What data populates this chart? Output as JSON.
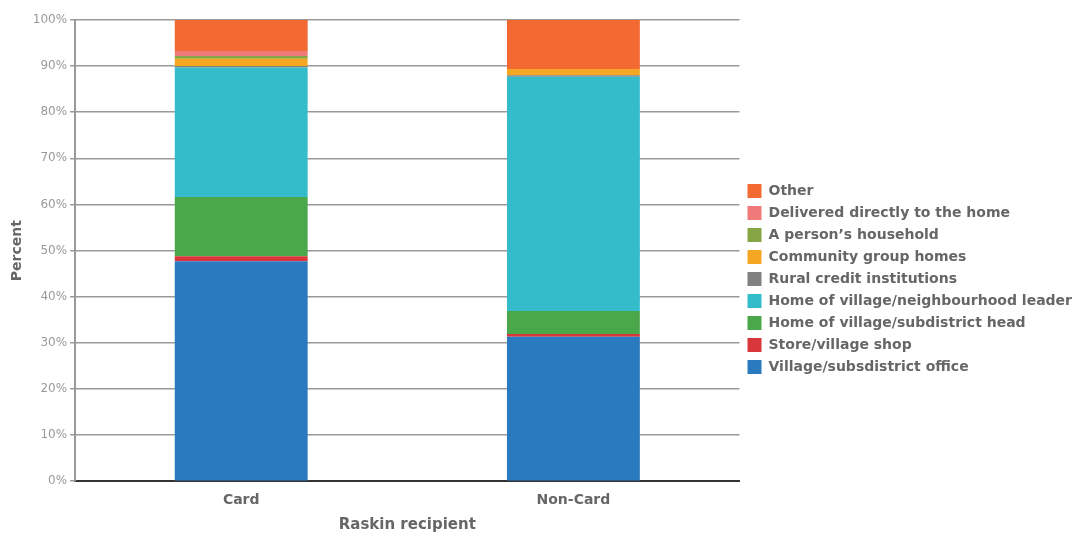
{
  "chart_data": {
    "type": "bar",
    "stacked": true,
    "xlabel": "Raskin recipient",
    "ylabel": "Percent",
    "categories": [
      "Card",
      "Non-Card"
    ],
    "ylim": [
      0,
      100
    ],
    "yticks": [
      {
        "value": 0,
        "label": "0%"
      },
      {
        "value": 10,
        "label": "10%"
      },
      {
        "value": 20,
        "label": "20%"
      },
      {
        "value": 30,
        "label": "30%"
      },
      {
        "value": 40,
        "label": "40%"
      },
      {
        "value": 50,
        "label": "50%"
      },
      {
        "value": 60,
        "label": "60%"
      },
      {
        "value": 70,
        "label": "70%"
      },
      {
        "value": 80,
        "label": "80%"
      },
      {
        "value": 90,
        "label": "90%"
      },
      {
        "value": 100,
        "label": "100%"
      }
    ],
    "grid": "y",
    "legend": "right",
    "series": [
      {
        "name": "Village/subsdistrict office",
        "color": "#2a7abf",
        "values": [
          47.7,
          31.3
        ]
      },
      {
        "name": "Store/village shop",
        "color": "#d9363b",
        "values": [
          1.1,
          0.6
        ]
      },
      {
        "name": "Home of village/subdistrict head",
        "color": "#4aa84b",
        "values": [
          12.8,
          5.0
        ]
      },
      {
        "name": "Home of village/neighbourhood leader",
        "color": "#35bccb",
        "values": [
          28.1,
          50.8
        ]
      },
      {
        "name": "Rural credit institutions",
        "color": "#808080",
        "values": [
          0.3,
          0.3
        ]
      },
      {
        "name": "Community group homes",
        "color": "#f5a623",
        "values": [
          1.6,
          1.4
        ]
      },
      {
        "name": "A person’s household",
        "color": "#86a645",
        "values": [
          0.6,
          0
        ]
      },
      {
        "name": "Delivered directly to the home",
        "color": "#f07a7a",
        "values": [
          1.1,
          0
        ]
      },
      {
        "name": "Other",
        "color": "#f26a32",
        "values": [
          6.7,
          10.6
        ]
      }
    ]
  }
}
